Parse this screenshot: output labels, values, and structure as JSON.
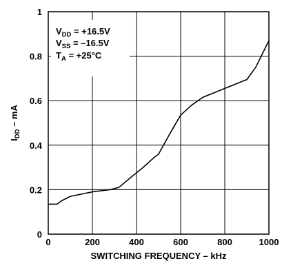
{
  "chart_data": {
    "type": "line",
    "title": "",
    "xlabel": "SWITCHING FREQUENCY – kHz",
    "ylabel": {
      "main": "I",
      "sub": "DD",
      "rest": " – mA"
    },
    "xlim": [
      0,
      1000
    ],
    "ylim": [
      0,
      1
    ],
    "xticks": [
      "0",
      "200",
      "400",
      "600",
      "800",
      "1000"
    ],
    "yticks": [
      "0",
      "0.2",
      "0.4",
      "0.6",
      "0.8",
      "1"
    ],
    "grid": true,
    "annotations": [
      {
        "main": "V",
        "sub": "DD",
        "rest": " = +16.5V"
      },
      {
        "main": "V",
        "sub": "SS",
        "rest": " = –16.5V"
      },
      {
        "main": "T",
        "sub": "A",
        "rest": " = +25°C"
      }
    ],
    "series": [
      {
        "color": "#000000",
        "x": [
          0,
          40,
          60,
          100,
          150,
          200,
          280,
          320,
          380,
          430,
          480,
          500,
          550,
          600,
          650,
          700,
          800,
          900,
          940,
          1000
        ],
        "y": [
          0.135,
          0.135,
          0.15,
          0.17,
          0.18,
          0.19,
          0.2,
          0.21,
          0.26,
          0.3,
          0.345,
          0.36,
          0.45,
          0.535,
          0.58,
          0.615,
          0.655,
          0.695,
          0.75,
          0.87
        ]
      }
    ]
  }
}
